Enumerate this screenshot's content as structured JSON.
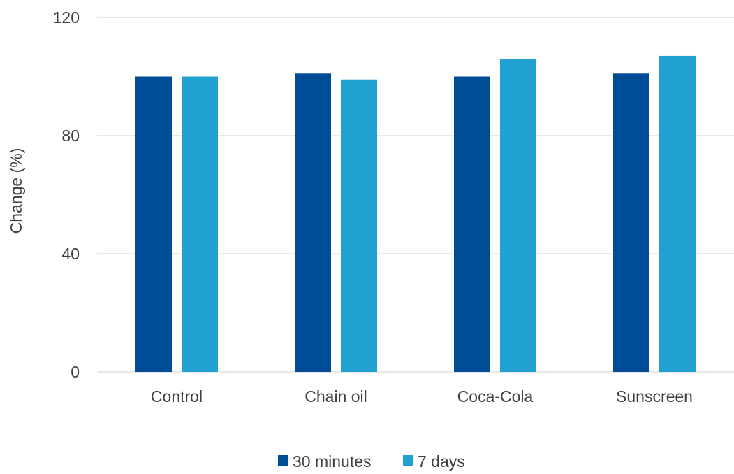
{
  "chart_data": {
    "type": "bar",
    "title": "",
    "xlabel": "",
    "ylabel": "Change (%)",
    "ylim": [
      0,
      120
    ],
    "yticks": [
      0,
      40,
      80,
      120
    ],
    "grid": true,
    "legend_position": "bottom",
    "categories": [
      "Control",
      "Chain oil",
      "Coca-Cola",
      "Sunscreen"
    ],
    "series": [
      {
        "name": "30 minutes",
        "color": "#004C97",
        "values": [
          100,
          101,
          100,
          101
        ]
      },
      {
        "name": "7 days",
        "color": "#21A0D2",
        "values": [
          100,
          99,
          106,
          107
        ]
      }
    ]
  }
}
